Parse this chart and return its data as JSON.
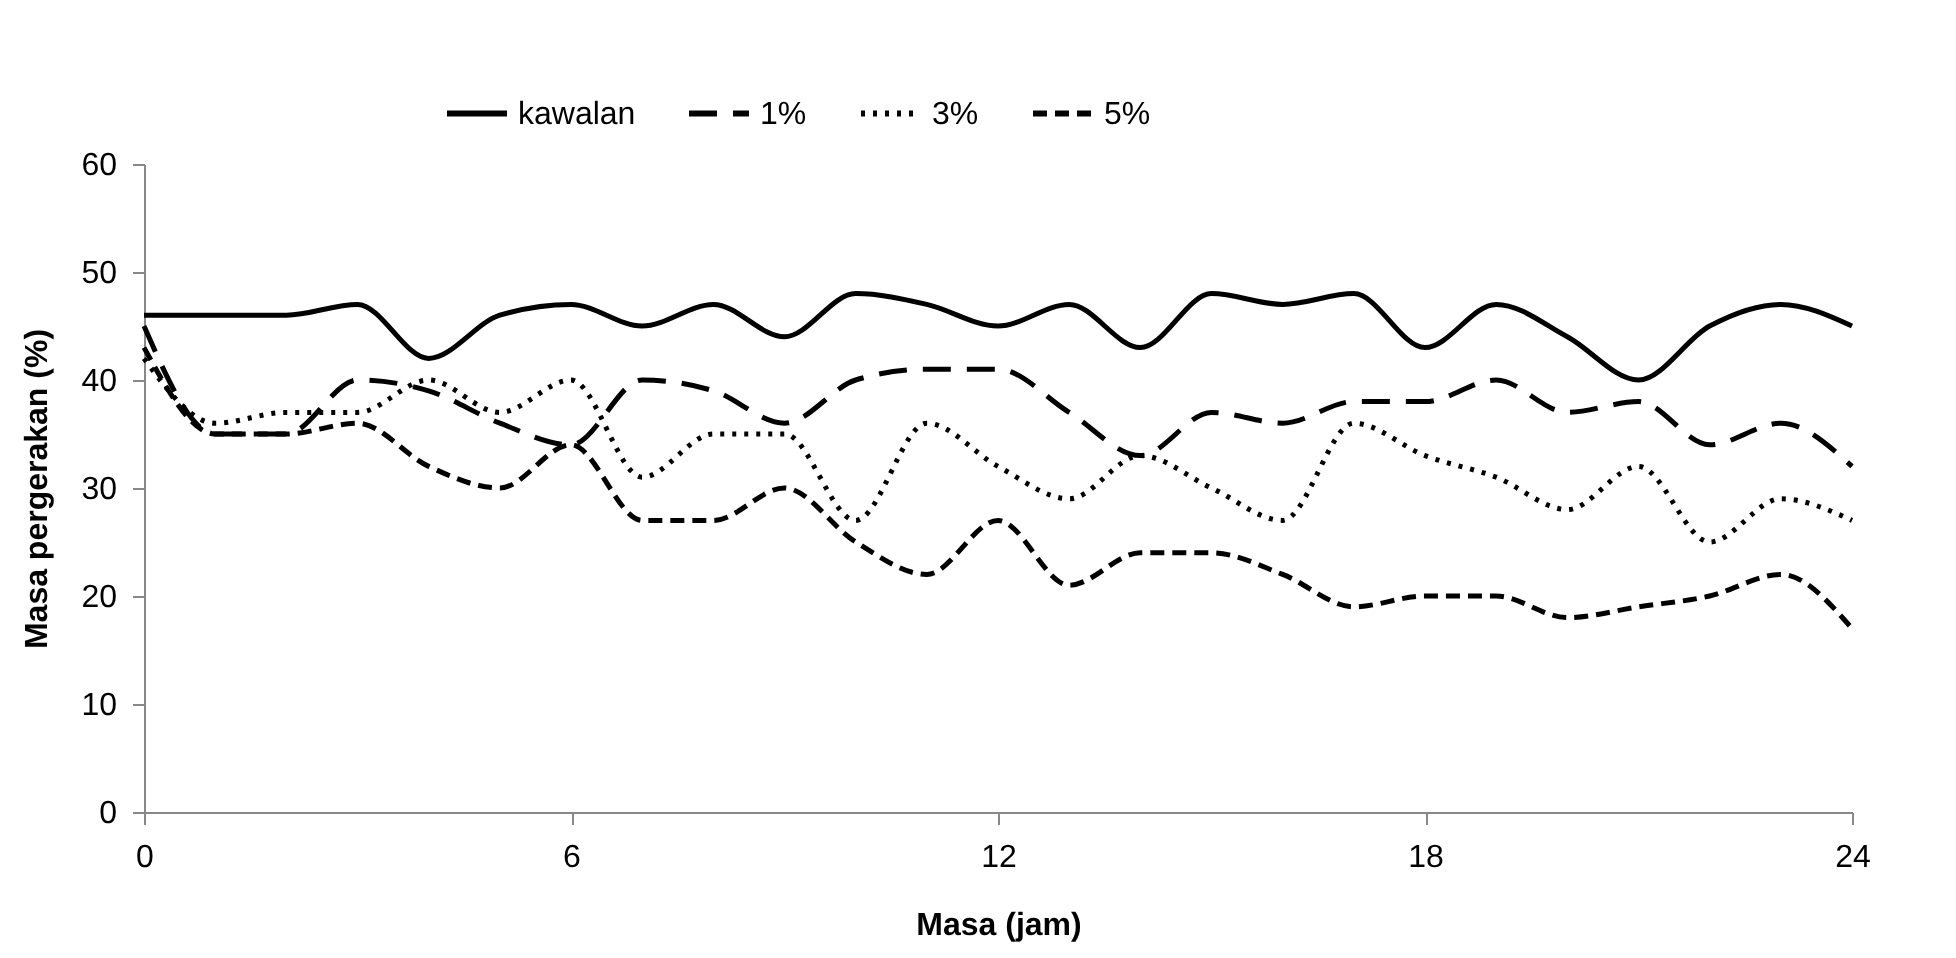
{
  "chart_data": {
    "type": "line",
    "xlabel": "Masa (jam)",
    "ylabel": "Masa pergerakan (%)",
    "x": [
      0,
      1,
      2,
      3,
      4,
      5,
      6,
      7,
      8,
      9,
      10,
      11,
      12,
      13,
      14,
      15,
      16,
      17,
      18,
      19,
      20,
      21,
      22,
      23,
      24
    ],
    "series": [
      {
        "name": "kawalan",
        "color": "#000000",
        "line_style": "solid",
        "values": [
          46,
          46,
          46,
          47,
          42,
          46,
          47,
          45,
          47,
          44,
          48,
          47,
          45,
          47,
          43,
          48,
          47,
          48,
          43,
          47,
          44,
          40,
          45,
          47,
          45
        ]
      },
      {
        "name": "1%",
        "color": "#000000",
        "line_style": "dashed",
        "values": [
          45,
          35,
          35,
          40,
          39,
          36,
          34,
          40,
          39,
          36,
          40,
          41,
          41,
          37,
          33,
          37,
          36,
          38,
          38,
          40,
          37,
          38,
          34,
          36,
          32
        ]
      },
      {
        "name": "3%",
        "color": "#000000",
        "line_style": "dotted",
        "values": [
          42,
          36,
          37,
          37,
          40,
          37,
          40,
          31,
          35,
          35,
          27,
          36,
          32,
          29,
          33,
          30,
          27,
          36,
          33,
          31,
          28,
          32,
          25,
          29,
          27
        ]
      },
      {
        "name": "5%",
        "color": "#000000",
        "line_style": "dashed",
        "values": [
          43,
          35,
          35,
          36,
          32,
          30,
          34,
          27,
          27,
          30,
          25,
          22,
          27,
          21,
          24,
          24,
          22,
          19,
          20,
          20,
          18,
          19,
          20,
          22,
          17
        ]
      }
    ],
    "xlim": [
      0,
      24
    ],
    "xticks": [
      0,
      6,
      12,
      18,
      24
    ],
    "ylim": [
      0,
      60
    ],
    "yticks": [
      0,
      10,
      20,
      30,
      40,
      50,
      60
    ],
    "grid": false,
    "legend": "top",
    "marker": "none"
  }
}
